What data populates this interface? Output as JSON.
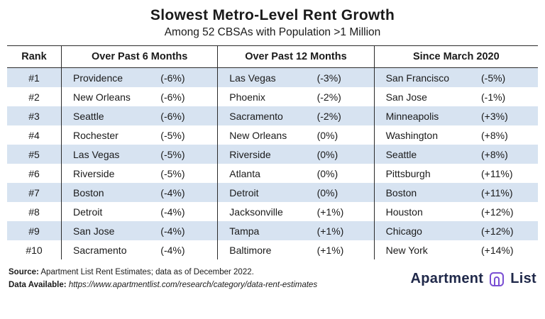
{
  "chart_data": {
    "type": "table",
    "title": "Slowest Metro-Level Rent Growth",
    "subtitle": "Among 52 CBSAs with Population >1 Million",
    "columns": [
      "Rank",
      "Over Past 6 Months",
      "Over Past 12 Months",
      "Since March 2020"
    ],
    "rows": [
      [
        "#1",
        "Providence",
        "(-6%)",
        "Las Vegas",
        "(-3%)",
        "San Francisco",
        "(-5%)"
      ],
      [
        "#2",
        "New Orleans",
        "(-6%)",
        "Phoenix",
        "(-2%)",
        "San Jose",
        "(-1%)"
      ],
      [
        "#3",
        "Seattle",
        "(-6%)",
        "Sacramento",
        "(-2%)",
        "Minneapolis",
        "(+3%)"
      ],
      [
        "#4",
        "Rochester",
        "(-5%)",
        "New Orleans",
        "(0%)",
        "Washington",
        "(+8%)"
      ],
      [
        "#5",
        "Las Vegas",
        "(-5%)",
        "Riverside",
        "(0%)",
        "Seattle",
        "(+8%)"
      ],
      [
        "#6",
        "Riverside",
        "(-5%)",
        "Atlanta",
        "(0%)",
        "Pittsburgh",
        "(+11%)"
      ],
      [
        "#7",
        "Boston",
        "(-4%)",
        "Detroit",
        "(0%)",
        "Boston",
        "(+11%)"
      ],
      [
        "#8",
        "Detroit",
        "(-4%)",
        "Jacksonville",
        "(+1%)",
        "Houston",
        "(+12%)"
      ],
      [
        "#9",
        "San Jose",
        "(-4%)",
        "Tampa",
        "(+1%)",
        "Chicago",
        "(+12%)"
      ],
      [
        "#10",
        "Sacramento",
        "(-4%)",
        "Baltimore",
        "(+1%)",
        "New York",
        "(+14%)"
      ]
    ],
    "layout": {
      "grid": "off",
      "alternating_row_shading": true
    }
  },
  "footer": {
    "source_label": "Source:",
    "source_text": "Apartment List Rent Estimates; data as of December 2022.",
    "data_label": "Data Available:",
    "data_url": "https://www.apartmentlist.com/research/category/data-rent-estimates",
    "logo_word1": "Apartment",
    "logo_word2": "List"
  },
  "colors": {
    "row_alt_blue": "#d7e3f1",
    "border_dark": "#2a2a2a",
    "logo_navy": "#20294a",
    "logo_purple": "#7a4fd3"
  }
}
